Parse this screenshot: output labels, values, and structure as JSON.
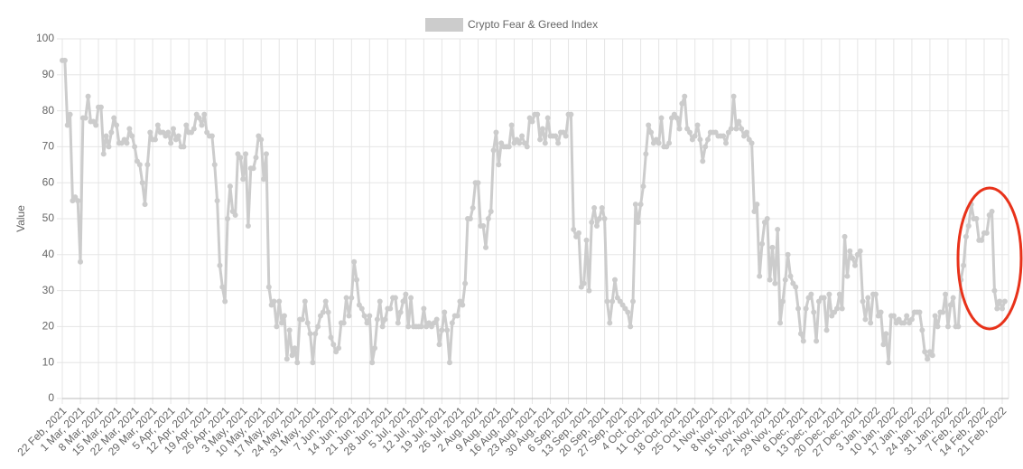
{
  "chart_data": {
    "type": "line",
    "y_label": "Value",
    "ylim": [
      0,
      100
    ],
    "yticks": [
      0,
      10,
      20,
      30,
      40,
      50,
      60,
      70,
      80,
      90,
      100
    ],
    "grid": true,
    "legend": "top",
    "categories": [
      "22 Feb, 2021",
      null,
      null,
      null,
      null,
      null,
      null,
      "1 Mar, 2021",
      null,
      null,
      null,
      null,
      null,
      null,
      "8 Mar, 2021",
      null,
      null,
      null,
      null,
      null,
      null,
      "15 Mar, 2021",
      null,
      null,
      null,
      null,
      null,
      null,
      "22 Mar, 2021",
      null,
      null,
      null,
      null,
      null,
      null,
      "29 Mar, 2021",
      null,
      null,
      null,
      null,
      null,
      null,
      "5 Apr, 2021",
      null,
      null,
      null,
      null,
      null,
      null,
      "12 Apr, 2021",
      null,
      null,
      null,
      null,
      null,
      null,
      "19 Apr, 2021",
      null,
      null,
      null,
      null,
      null,
      null,
      "26 Apr, 2021",
      null,
      null,
      null,
      null,
      null,
      null,
      "3 May, 2021",
      null,
      null,
      null,
      null,
      null,
      null,
      "10 May, 2021",
      null,
      null,
      null,
      null,
      null,
      null,
      "17 May, 2021",
      null,
      null,
      null,
      null,
      null,
      null,
      "24 May, 2021",
      null,
      null,
      null,
      null,
      null,
      null,
      "31 May, 2021",
      null,
      null,
      null,
      null,
      null,
      null,
      "7 Jun, 2021",
      null,
      null,
      null,
      null,
      null,
      null,
      "14 Jun, 2021",
      null,
      null,
      null,
      null,
      null,
      null,
      "21 Jun, 2021",
      null,
      null,
      null,
      null,
      null,
      null,
      "28 Jun, 2021",
      null,
      null,
      null,
      null,
      null,
      null,
      "5 Jul, 2021",
      null,
      null,
      null,
      null,
      null,
      null,
      "12 Jul, 2021",
      null,
      null,
      null,
      null,
      null,
      null,
      "19 Jul, 2021",
      null,
      null,
      null,
      null,
      null,
      null,
      "26 Jul, 2021",
      null,
      null,
      null,
      null,
      null,
      null,
      "2 Aug, 2021",
      null,
      null,
      null,
      null,
      null,
      null,
      "9 Aug, 2021",
      null,
      null,
      null,
      null,
      null,
      null,
      "16 Aug, 2021",
      null,
      null,
      null,
      null,
      null,
      null,
      "23 Aug, 2021",
      null,
      null,
      null,
      null,
      null,
      null,
      "30 Aug, 2021",
      null,
      null,
      null,
      null,
      null,
      null,
      "6 Sep, 2021",
      null,
      null,
      null,
      null,
      null,
      null,
      "13 Sep, 2021",
      null,
      null,
      null,
      null,
      null,
      null,
      "20 Sep, 2021",
      null,
      null,
      null,
      null,
      null,
      null,
      "27 Sep, 2021",
      null,
      null,
      null,
      null,
      null,
      null,
      "4 Oct, 2021",
      null,
      null,
      null,
      null,
      null,
      null,
      "11 Oct, 2021",
      null,
      null,
      null,
      null,
      null,
      null,
      "18 Oct, 2021",
      null,
      null,
      null,
      null,
      null,
      null,
      "25 Oct, 2021",
      null,
      null,
      null,
      null,
      null,
      null,
      "1 Nov, 2021",
      null,
      null,
      null,
      null,
      null,
      null,
      "8 Nov, 2021",
      null,
      null,
      null,
      null,
      null,
      null,
      "15 Nov, 2021",
      null,
      null,
      null,
      null,
      null,
      null,
      "22 Nov, 2021",
      null,
      null,
      null,
      null,
      null,
      null,
      "29 Nov, 2021",
      null,
      null,
      null,
      null,
      null,
      null,
      "6 Dec, 2021",
      null,
      null,
      null,
      null,
      null,
      null,
      "13 Dec, 2021",
      null,
      null,
      null,
      null,
      null,
      null,
      "20 Dec, 2021",
      null,
      null,
      null,
      null,
      null,
      null,
      "27 Dec, 2021",
      null,
      null,
      null,
      null,
      null,
      null,
      "3 Jan, 2022",
      null,
      null,
      null,
      null,
      null,
      null,
      "10 Jan, 2022",
      null,
      null,
      null,
      null,
      null,
      null,
      "17 Jan, 2022",
      null,
      null,
      null,
      null,
      null,
      null,
      "24 Jan, 2022",
      null,
      null,
      null,
      null,
      null,
      null,
      "31 Jan, 2022",
      null,
      null,
      null,
      null,
      null,
      null,
      "7 Feb, 2022",
      null,
      null,
      null,
      null,
      null,
      null,
      "14 Feb, 2022",
      null,
      null,
      null,
      null,
      null,
      null,
      "21 Feb, 2022",
      null
    ],
    "series": [
      {
        "name": "Crypto Fear & Greed Index",
        "color": "#cccccc",
        "values": [
          94,
          94,
          76,
          79,
          55,
          56,
          55,
          38,
          78,
          78,
          84,
          77,
          77,
          76,
          81,
          81,
          68,
          73,
          70,
          74,
          78,
          76,
          71,
          71,
          72,
          71,
          75,
          73,
          70,
          66,
          65,
          60,
          54,
          65,
          74,
          72,
          72,
          76,
          74,
          74,
          73,
          74,
          71,
          75,
          72,
          73,
          70,
          70,
          76,
          74,
          74,
          75,
          79,
          78,
          76,
          79,
          74,
          73,
          73,
          65,
          55,
          37,
          31,
          27,
          50,
          59,
          52,
          51,
          68,
          67,
          61,
          68,
          48,
          64,
          64,
          67,
          73,
          72,
          61,
          68,
          31,
          26,
          27,
          20,
          27,
          21,
          23,
          11,
          19,
          12,
          14,
          10,
          22,
          22,
          27,
          21,
          18,
          10,
          18,
          20,
          23,
          24,
          27,
          24,
          17,
          15,
          13,
          14,
          21,
          21,
          28,
          23,
          28,
          38,
          33,
          26,
          25,
          23,
          21,
          23,
          10,
          14,
          22,
          27,
          20,
          22,
          25,
          25,
          28,
          28,
          21,
          24,
          27,
          29,
          20,
          28,
          20,
          20,
          20,
          20,
          25,
          20,
          21,
          20,
          21,
          22,
          15,
          19,
          24,
          19,
          10,
          21,
          23,
          23,
          27,
          26,
          32,
          50,
          50,
          53,
          60,
          60,
          48,
          48,
          42,
          50,
          52,
          69,
          74,
          65,
          71,
          70,
          70,
          70,
          76,
          71,
          72,
          71,
          73,
          71,
          70,
          78,
          77,
          79,
          79,
          72,
          75,
          71,
          78,
          73,
          73,
          73,
          71,
          74,
          74,
          73,
          79,
          79,
          47,
          45,
          46,
          31,
          32,
          44,
          30,
          49,
          53,
          48,
          50,
          53,
          50,
          27,
          21,
          27,
          33,
          28,
          27,
          26,
          25,
          24,
          20,
          27,
          54,
          49,
          54,
          59,
          68,
          76,
          74,
          71,
          72,
          71,
          78,
          70,
          70,
          71,
          78,
          79,
          78,
          75,
          82,
          84,
          75,
          74,
          72,
          73,
          76,
          72,
          66,
          70,
          72,
          74,
          74,
          74,
          73,
          73,
          73,
          71,
          74,
          75,
          84,
          75,
          77,
          75,
          73,
          74,
          72,
          71,
          52,
          54,
          34,
          43,
          49,
          50,
          33,
          42,
          32,
          47,
          21,
          27,
          33,
          40,
          34,
          32,
          31,
          25,
          18,
          16,
          25,
          28,
          29,
          24,
          16,
          27,
          28,
          28,
          19,
          29,
          23,
          24,
          25,
          29,
          25,
          45,
          34,
          41,
          39,
          37,
          40,
          41,
          27,
          22,
          28,
          21,
          29,
          29,
          23,
          24,
          15,
          18,
          10,
          23,
          23,
          21,
          22,
          21,
          21,
          23,
          21,
          22,
          24,
          24,
          24,
          19,
          13,
          11,
          13,
          12,
          23,
          20,
          24,
          24,
          29,
          20,
          26,
          28,
          20,
          20,
          33,
          37,
          45,
          48,
          54,
          50,
          50,
          44,
          44,
          46,
          46,
          51,
          52,
          30,
          25,
          27,
          25,
          27
        ]
      }
    ]
  }
}
